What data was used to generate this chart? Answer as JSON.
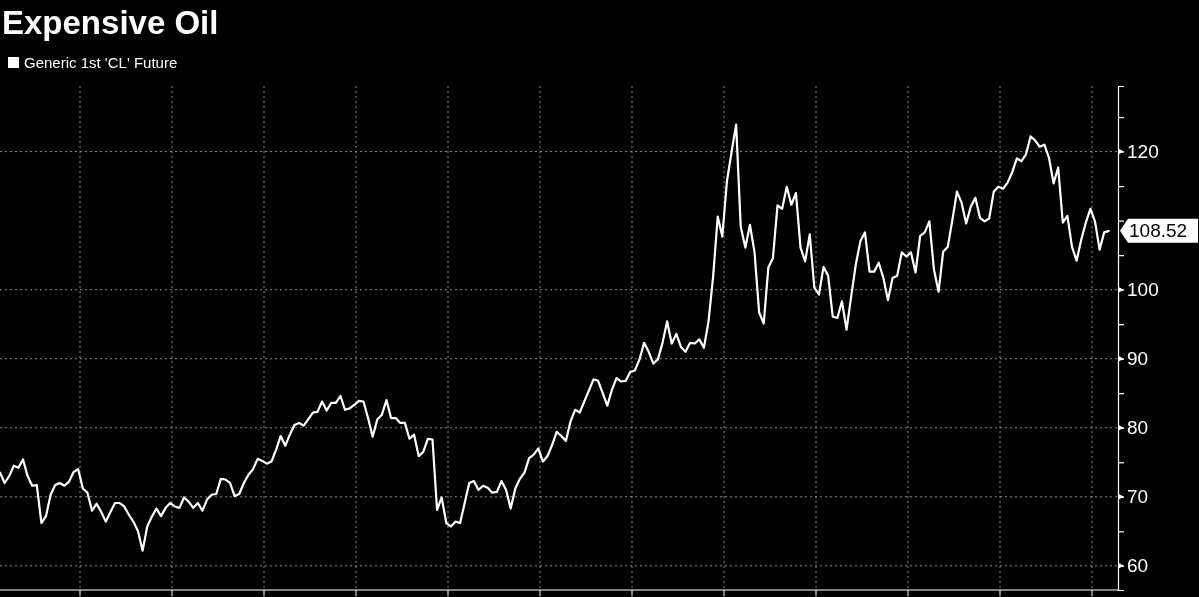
{
  "chart_data": {
    "type": "line",
    "title": "Expensive Oil",
    "legend": "top left",
    "grid": true,
    "ylim": [
      56.5,
      129.5
    ],
    "yticks": [
      60,
      {
        "value": 65,
        "label": null
      },
      70,
      {
        "value": 75,
        "label": null
      },
      80,
      {
        "value": 85,
        "label": null
      },
      90,
      {
        "value": 95,
        "label": null
      },
      100,
      {
        "value": 105,
        "label": null
      },
      {
        "value": 110,
        "label": null
      },
      {
        "value": 115,
        "label": null
      },
      120,
      {
        "value": 125,
        "label": null
      }
    ],
    "categories": [
      null,
      null,
      null,
      null,
      null,
      null,
      null,
      null,
      null,
      null,
      null,
      null,
      null,
      null,
      null,
      null,
      null,
      null,
      null,
      null,
      null,
      null,
      null,
      null,
      null,
      null,
      null,
      null,
      null,
      null,
      null,
      null,
      null,
      null,
      null,
      null,
      null,
      null,
      null,
      null,
      null,
      null,
      null,
      null,
      null,
      null,
      null,
      null,
      null,
      null,
      null,
      null,
      null,
      null,
      null,
      null,
      null,
      null,
      null,
      null,
      null,
      null,
      null,
      null,
      null,
      null,
      null,
      null,
      null,
      null,
      null,
      null,
      null,
      null,
      null,
      null,
      null,
      null,
      null,
      null,
      null,
      null,
      null,
      null,
      null,
      null,
      null,
      null,
      null,
      null,
      null,
      null,
      null,
      null,
      null,
      null,
      null,
      null,
      null,
      null,
      null,
      null,
      null,
      null,
      null,
      null,
      null,
      null,
      null,
      null,
      null,
      null,
      null,
      null,
      null,
      null,
      null,
      null,
      null,
      null,
      null,
      null,
      null,
      null,
      null,
      null,
      null,
      null,
      null,
      null,
      null,
      null,
      null,
      null,
      null,
      null,
      null,
      null,
      null,
      null,
      null,
      null,
      null,
      null,
      null,
      null,
      null,
      null,
      null,
      null,
      null,
      null,
      null,
      null,
      null,
      null,
      null,
      null,
      null,
      null,
      null,
      null,
      null,
      null,
      null,
      null,
      null,
      null,
      null,
      null,
      null,
      null,
      null,
      null,
      null,
      null,
      null,
      null,
      null,
      null,
      null,
      null,
      null,
      null,
      null,
      null,
      null,
      null,
      null,
      null,
      null,
      null,
      null,
      null,
      null,
      null,
      null,
      null,
      null,
      null,
      null,
      null,
      null,
      null,
      null,
      null,
      null,
      null,
      null,
      null,
      null,
      null,
      null,
      null,
      null,
      null,
      null,
      null,
      null,
      null,
      null,
      null,
      null,
      null,
      null,
      null,
      null,
      null,
      null,
      null,
      null,
      null,
      null,
      null,
      null,
      null,
      null,
      null,
      null,
      null,
      null,
      null
    ],
    "series": [
      {
        "name": "Generic 1st 'CL' Future",
        "color": "#ffffff",
        "values": [
          73.5,
          72,
          73,
          74.5,
          74.2,
          75.4,
          73,
          71.6,
          71.7,
          66.2,
          67.2,
          70.3,
          71.7,
          72,
          71.6,
          72.2,
          73.6,
          74,
          71.2,
          70.6,
          68,
          69,
          67.8,
          66.4,
          67.8,
          69.1,
          69.1,
          68.6,
          67.4,
          66.4,
          65,
          62.2,
          65.7,
          67.1,
          68.3,
          67.2,
          68.4,
          69.1,
          68.6,
          68.4,
          69.9,
          69.3,
          68.4,
          69.1,
          68,
          69.6,
          70.3,
          70.4,
          72.6,
          72.5,
          72,
          70.1,
          70.4,
          72,
          73.2,
          74,
          75.5,
          75.2,
          74.8,
          75.1,
          76.8,
          78.8,
          77.4,
          79,
          80.4,
          80.7,
          80.3,
          81.2,
          82.2,
          82.3,
          83.8,
          82.5,
          83.6,
          83.6,
          84.6,
          82.6,
          82.8,
          83.3,
          83.9,
          83.8,
          81.4,
          78.7,
          81.2,
          81.9,
          84,
          81.4,
          81.4,
          80.7,
          80.7,
          78.4,
          79,
          75.9,
          76.5,
          78.4,
          78.3,
          68.1,
          69.9,
          66.2,
          65.7,
          66.4,
          66.2,
          69.1,
          72,
          72.3,
          71,
          71.6,
          71.3,
          70.6,
          70.7,
          72.3,
          71,
          68.3,
          71.2,
          72.6,
          73.5,
          75.6,
          76.1,
          77,
          75.1,
          75.9,
          77.5,
          79.4,
          78.8,
          78.1,
          80.9,
          82.6,
          82.2,
          83.8,
          85.4,
          87,
          86.8,
          85,
          83.2,
          85.5,
          87.2,
          86.7,
          86.8,
          88.1,
          88.3,
          89.9,
          92.3,
          91,
          89.3,
          89.9,
          92.3,
          95.4,
          92.2,
          93.6,
          91.7,
          91,
          92.3,
          92.2,
          92.8,
          91.6,
          95.4,
          101.9,
          110.6,
          107.7,
          115.7,
          119.9,
          123.9,
          109.1,
          106.1,
          109.4,
          105.4,
          96.7,
          95.1,
          103.2,
          104.6,
          112.2,
          111.7,
          114.9,
          112.3,
          114,
          106.1,
          104.1,
          108,
          100.3,
          99.3,
          103.3,
          102,
          96.1,
          95.9,
          98.3,
          94.2,
          99,
          103.6,
          107,
          108.3,
          102.6,
          102.6,
          103.9,
          101.7,
          98.5,
          101.7,
          102,
          105.4,
          104.8,
          105.4,
          102.5,
          107.8,
          108.3,
          109.9,
          102.9,
          99.7,
          105.5,
          106.2,
          110.1,
          114.2,
          112.6,
          109.6,
          112,
          113.3,
          110.4,
          109.9,
          110.3,
          114.2,
          114.9,
          114.6,
          115.5,
          117,
          119,
          118.6,
          119.6,
          122.2,
          121.6,
          120.7,
          121,
          119.1,
          115.4,
          117.7,
          109.7,
          110.7,
          106.2,
          104.2,
          107.2,
          109.7,
          111.7,
          109.9,
          105.8,
          108.3,
          108.52
        ],
        "value_labels": [
          null,
          null,
          null,
          null,
          null,
          null,
          null,
          null,
          null,
          null,
          null,
          null,
          null,
          null,
          null,
          null,
          null,
          null,
          null,
          null,
          null,
          null,
          null,
          null,
          null,
          null,
          null,
          null,
          null,
          null,
          null,
          null,
          null,
          null,
          null,
          null,
          null,
          null,
          null,
          null,
          null,
          null,
          null,
          null,
          null,
          null,
          null,
          null,
          null,
          null,
          null,
          null,
          null,
          null,
          null,
          null,
          null,
          null,
          null,
          null,
          null,
          null,
          null,
          null,
          null,
          null,
          null,
          null,
          null,
          null,
          null,
          null,
          null,
          null,
          null,
          null,
          null,
          null,
          null,
          null,
          null,
          null,
          null,
          null,
          null,
          null,
          null,
          null,
          null,
          null,
          null,
          null,
          null,
          null,
          null,
          null,
          null,
          null,
          null,
          null,
          null,
          null,
          null,
          null,
          null,
          null,
          null,
          null,
          null,
          null,
          null,
          null,
          null,
          null,
          null,
          null,
          null,
          null,
          null,
          null,
          null,
          null,
          null,
          null,
          null,
          null,
          null,
          null,
          null,
          null,
          null,
          null,
          null,
          null,
          null,
          null,
          null,
          null,
          null,
          null,
          null,
          null,
          null,
          null,
          null,
          null,
          null,
          null,
          null,
          null,
          null,
          null,
          null,
          null,
          null,
          null,
          null,
          null,
          null,
          null,
          null,
          null,
          null,
          null,
          null,
          null,
          null,
          null,
          null,
          null,
          null,
          null,
          null,
          null,
          null,
          null,
          null,
          null,
          null,
          null,
          null,
          null,
          null,
          null,
          null,
          null,
          null,
          null,
          null,
          null,
          null,
          null,
          null,
          null,
          null,
          null,
          null,
          null,
          null,
          null,
          null,
          null,
          null,
          null,
          null,
          null,
          null,
          null,
          null,
          null,
          null,
          null,
          null,
          null,
          null,
          null,
          null,
          null,
          null,
          null,
          null,
          null,
          null,
          null,
          null,
          null,
          null,
          null,
          null,
          null,
          null,
          null,
          null,
          null,
          null,
          null,
          null,
          null,
          null,
          null,
          null,
          "108.52"
        ]
      }
    ]
  }
}
